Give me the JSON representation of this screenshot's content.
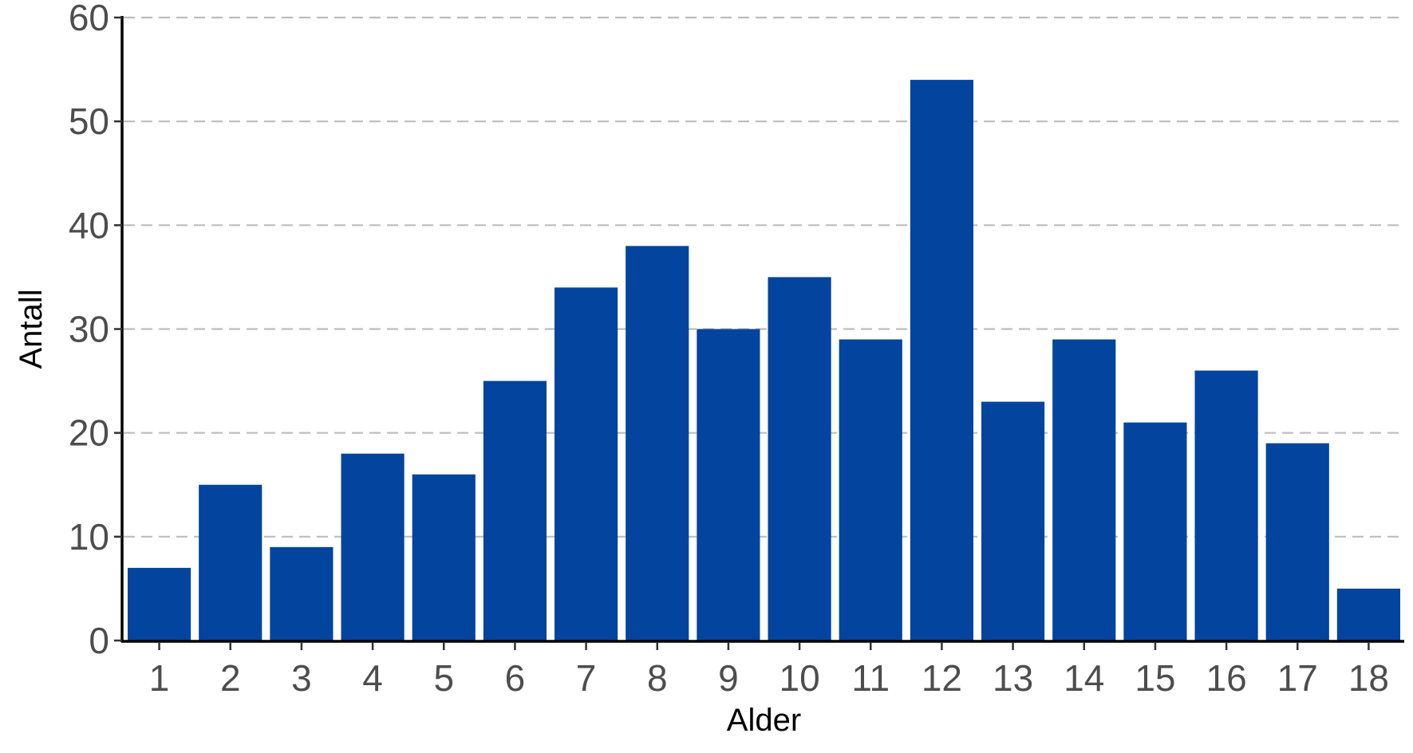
{
  "chart_data": {
    "type": "bar",
    "categories": [
      "1",
      "2",
      "3",
      "4",
      "5",
      "6",
      "7",
      "8",
      "9",
      "10",
      "11",
      "12",
      "13",
      "14",
      "15",
      "16",
      "17",
      "18"
    ],
    "values": [
      7,
      15,
      9,
      18,
      16,
      25,
      34,
      38,
      30,
      35,
      29,
      54,
      23,
      29,
      21,
      26,
      19,
      5
    ],
    "xlabel": "Alder",
    "ylabel": "Antall",
    "ylim": [
      0,
      60
    ],
    "yticks": [
      "0",
      "10",
      "20",
      "30",
      "40",
      "50",
      "60"
    ],
    "grid": "horizontal dashed",
    "bar_color": "#03449e",
    "grid_color": "#bdbdbd"
  }
}
